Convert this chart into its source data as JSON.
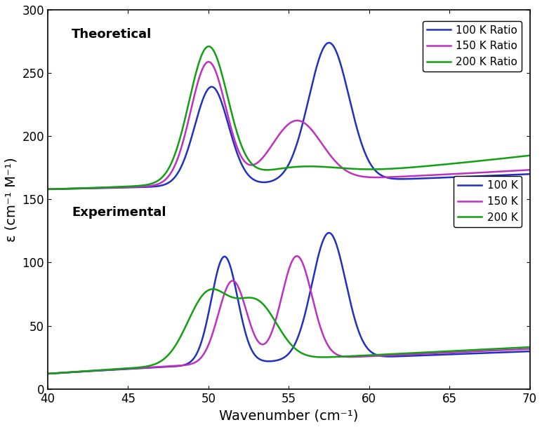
{
  "xlabel": "Wavenumber (cm⁻¹)",
  "ylabel": "ε (cm⁻¹ M⁻¹)",
  "xmin": 40,
  "xmax": 70,
  "ymin": 0,
  "ymax": 300,
  "colors": {
    "blue": "#2030C0",
    "magenta": "#C030C0",
    "green": "#10A010"
  },
  "theoretical_label": "Theoretical",
  "experimental_label": "Experimental",
  "legend1_entries": [
    "100 K Ratio",
    "150 K Ratio",
    "200 K Ratio"
  ],
  "legend2_entries": [
    "100 K",
    "150 K",
    "200 K"
  ],
  "tick_label_size": 12,
  "axis_label_size": 14,
  "legend_fontsize": 11,
  "linewidth": 1.8
}
